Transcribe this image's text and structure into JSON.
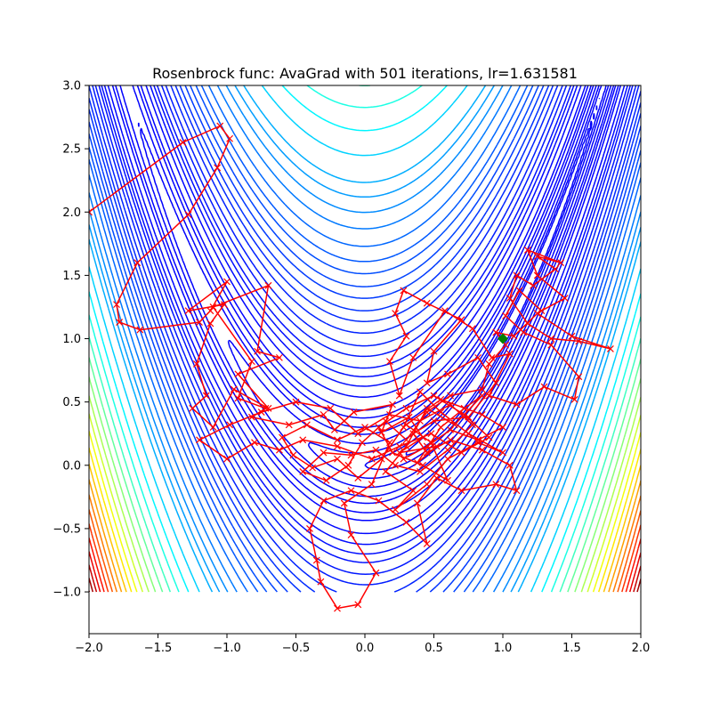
{
  "chart_data": {
    "type": "contour",
    "title": "Rosenbrock func: AvaGrad with 501 iterations, lr=1.631581",
    "xlabel": "",
    "ylabel": "",
    "xlim": [
      -2.0,
      2.0
    ],
    "ylim": [
      -1.33,
      3.0
    ],
    "x_ticks": [
      "−2.0",
      "−1.5",
      "−1.0",
      "−0.5",
      "0.0",
      "0.5",
      "1.0",
      "1.5",
      "2.0"
    ],
    "y_ticks": [
      "−1.0",
      "−0.5",
      "0.0",
      "0.5",
      "1.0",
      "1.5",
      "2.0",
      "2.5",
      "3.0"
    ],
    "x_tick_values": [
      -2.0,
      -1.5,
      -1.0,
      -0.5,
      0.0,
      0.5,
      1.0,
      1.5,
      2.0
    ],
    "y_tick_values": [
      -1.0,
      -0.5,
      0.0,
      0.5,
      1.0,
      1.5,
      2.0,
      2.5,
      3.0
    ],
    "grid": false,
    "contour": {
      "function": "rosenbrock",
      "domain_x": [
        -2.0,
        2.0
      ],
      "domain_y": [
        -1.0,
        3.0
      ],
      "colormap": "jet",
      "levels": [
        0.5,
        1,
        2,
        4,
        7,
        10,
        15,
        20,
        30,
        40,
        50,
        60,
        75,
        90,
        110,
        130,
        150,
        175,
        200,
        230,
        260,
        300,
        350,
        400,
        450,
        500,
        600,
        700,
        800,
        900,
        1000,
        1100,
        1200,
        1300,
        1400,
        1500,
        1600,
        1700,
        1800,
        1900,
        2000,
        2100,
        2200,
        2300,
        2400,
        2500,
        2600,
        2700,
        2800,
        2900,
        3000,
        3100,
        3200,
        3300,
        3400,
        3500
      ],
      "vmax": 2500
    },
    "minimum_marker": {
      "x": 1.0,
      "y": 1.0,
      "color": "#008000"
    },
    "trajectory": {
      "color": "#ff0000",
      "marker": "x",
      "points": [
        [
          -2.0,
          2.0
        ],
        [
          -1.32,
          2.55
        ],
        [
          -1.05,
          2.68
        ],
        [
          -0.98,
          2.58
        ],
        [
          -1.07,
          2.35
        ],
        [
          -1.28,
          1.98
        ],
        [
          -1.65,
          1.6
        ],
        [
          -1.8,
          1.27
        ],
        [
          -1.78,
          1.13
        ],
        [
          -1.63,
          1.07
        ],
        [
          -1.2,
          1.13
        ],
        [
          -1.12,
          1.22
        ],
        [
          -1.0,
          1.45
        ],
        [
          -1.28,
          1.22
        ],
        [
          -1.02,
          1.27
        ],
        [
          -1.12,
          1.12
        ],
        [
          -1.22,
          0.8
        ],
        [
          -1.15,
          0.55
        ],
        [
          -1.25,
          0.45
        ],
        [
          -1.1,
          0.3
        ],
        [
          -0.95,
          0.6
        ],
        [
          -0.7,
          0.45
        ],
        [
          -0.92,
          0.72
        ],
        [
          -0.62,
          0.85
        ],
        [
          -0.78,
          0.9
        ],
        [
          -0.7,
          1.42
        ],
        [
          -1.1,
          1.25
        ],
        [
          -0.82,
          0.82
        ],
        [
          -0.92,
          0.53
        ],
        [
          -0.72,
          0.45
        ],
        [
          -0.82,
          0.38
        ],
        [
          -0.55,
          0.32
        ],
        [
          -0.3,
          0.4
        ],
        [
          -0.22,
          0.28
        ],
        [
          -0.08,
          0.42
        ],
        [
          0.2,
          0.48
        ],
        [
          0.12,
          0.26
        ],
        [
          0.32,
          0.38
        ],
        [
          0.42,
          0.22
        ],
        [
          0.25,
          0.1
        ],
        [
          0.52,
          0.15
        ],
        [
          0.38,
          0.02
        ],
        [
          0.55,
          0.3
        ],
        [
          0.72,
          0.45
        ],
        [
          0.85,
          0.55
        ],
        [
          0.65,
          0.32
        ],
        [
          0.45,
          0.45
        ],
        [
          0.3,
          0.15
        ],
        [
          0.15,
          -0.05
        ],
        [
          0.35,
          -0.2
        ],
        [
          0.22,
          -0.35
        ],
        [
          0.45,
          -0.15
        ],
        [
          0.6,
          0.05
        ],
        [
          0.82,
          0.18
        ],
        [
          1.0,
          0.1
        ],
        [
          0.75,
          0.25
        ],
        [
          0.55,
          0.42
        ],
        [
          0.4,
          0.58
        ],
        [
          0.28,
          0.3
        ],
        [
          0.12,
          0.05
        ],
        [
          -0.05,
          -0.1
        ],
        [
          -0.2,
          0.05
        ],
        [
          -0.38,
          -0.02
        ],
        [
          -0.52,
          0.08
        ],
        [
          -0.6,
          0.22
        ],
        [
          -0.42,
          0.32
        ],
        [
          -0.2,
          0.2
        ],
        [
          0.0,
          0.3
        ],
        [
          0.18,
          0.18
        ],
        [
          0.05,
          -0.15
        ],
        [
          -0.15,
          -0.3
        ],
        [
          -0.1,
          -0.55
        ],
        [
          0.08,
          -0.85
        ],
        [
          -0.05,
          -1.1
        ],
        [
          -0.2,
          -1.13
        ],
        [
          -0.32,
          -0.92
        ],
        [
          -0.35,
          -0.75
        ],
        [
          -0.4,
          -0.5
        ],
        [
          -0.3,
          -0.28
        ],
        [
          -0.1,
          -0.2
        ],
        [
          0.1,
          -0.28
        ],
        [
          0.3,
          -0.45
        ],
        [
          0.45,
          -0.62
        ],
        [
          0.38,
          -0.3
        ],
        [
          0.52,
          -0.1
        ],
        [
          0.7,
          -0.2
        ],
        [
          0.95,
          -0.15
        ],
        [
          1.1,
          -0.2
        ],
        [
          1.05,
          0.0
        ],
        [
          0.85,
          0.12
        ],
        [
          0.62,
          0.2
        ],
        [
          0.45,
          0.1
        ],
        [
          0.35,
          0.25
        ],
        [
          0.5,
          0.35
        ],
        [
          0.75,
          0.38
        ],
        [
          0.95,
          0.65
        ],
        [
          0.82,
          0.85
        ],
        [
          0.6,
          0.72
        ],
        [
          0.45,
          0.65
        ],
        [
          0.5,
          0.9
        ],
        [
          0.7,
          1.15
        ],
        [
          0.45,
          1.28
        ],
        [
          0.28,
          1.38
        ],
        [
          0.22,
          1.2
        ],
        [
          0.3,
          1.02
        ],
        [
          0.18,
          0.82
        ],
        [
          0.25,
          0.55
        ],
        [
          0.35,
          0.85
        ],
        [
          0.58,
          1.22
        ],
        [
          0.78,
          1.08
        ],
        [
          0.92,
          0.85
        ],
        [
          1.05,
          0.88
        ],
        [
          0.9,
          0.55
        ],
        [
          1.1,
          0.48
        ],
        [
          1.3,
          0.62
        ],
        [
          1.52,
          0.52
        ],
        [
          1.55,
          0.7
        ],
        [
          1.35,
          0.95
        ],
        [
          1.15,
          1.05
        ],
        [
          1.02,
          1.18
        ],
        [
          1.12,
          1.38
        ],
        [
          1.28,
          1.22
        ],
        [
          1.45,
          1.32
        ],
        [
          1.25,
          1.5
        ],
        [
          1.18,
          1.7
        ],
        [
          1.42,
          1.6
        ],
        [
          1.25,
          1.65
        ],
        [
          1.38,
          1.55
        ],
        [
          1.22,
          1.42
        ],
        [
          1.1,
          1.5
        ],
        [
          1.05,
          1.32
        ],
        [
          1.18,
          1.12
        ],
        [
          1.35,
          1.0
        ],
        [
          1.55,
          0.98
        ],
        [
          1.78,
          0.92
        ],
        [
          1.5,
          1.02
        ],
        [
          1.25,
          1.2
        ],
        [
          1.08,
          1.02
        ],
        [
          0.95,
          1.05
        ],
        [
          1.02,
          0.95
        ],
        [
          0.9,
          0.8
        ],
        [
          0.85,
          0.6
        ],
        [
          0.62,
          0.55
        ],
        [
          0.45,
          0.42
        ],
        [
          0.3,
          0.2
        ],
        [
          0.15,
          0.35
        ],
        [
          -0.02,
          0.18
        ],
        [
          -0.12,
          0.0
        ],
        [
          -0.28,
          -0.12
        ],
        [
          -0.45,
          -0.05
        ],
        [
          -0.3,
          0.1
        ],
        [
          -0.1,
          0.08
        ],
        [
          0.08,
          0.12
        ],
        [
          0.22,
          0.0
        ],
        [
          0.4,
          -0.05
        ],
        [
          0.6,
          0.12
        ],
        [
          0.78,
          0.32
        ],
        [
          0.62,
          0.48
        ],
        [
          0.4,
          0.35
        ],
        [
          0.18,
          0.4
        ],
        [
          -0.05,
          0.25
        ],
        [
          -0.25,
          0.45
        ],
        [
          -0.5,
          0.5
        ],
        [
          -0.75,
          0.42
        ],
        [
          -0.98,
          0.32
        ],
        [
          -1.2,
          0.2
        ],
        [
          -1.0,
          0.05
        ],
        [
          -0.8,
          0.18
        ],
        [
          -0.62,
          0.12
        ],
        [
          -0.45,
          0.2
        ],
        [
          -0.2,
          0.15
        ],
        [
          0.05,
          0.05
        ],
        [
          0.25,
          0.15
        ],
        [
          0.48,
          0.25
        ],
        [
          0.7,
          0.1
        ],
        [
          0.9,
          0.22
        ],
        [
          0.72,
          0.4
        ],
        [
          0.5,
          0.55
        ],
        [
          0.3,
          0.45
        ],
        [
          0.1,
          0.3
        ],
        [
          0.2,
          0.1
        ],
        [
          0.42,
          0.0
        ],
        [
          0.6,
          -0.12
        ],
        [
          0.48,
          0.18
        ],
        [
          0.3,
          0.32
        ],
        [
          0.55,
          0.52
        ],
        [
          0.85,
          0.4
        ],
        [
          1.0,
          0.3
        ],
        [
          0.82,
          0.2
        ],
        [
          0.62,
          0.28
        ],
        [
          0.45,
          0.15
        ],
        [
          0.28,
          0.05
        ]
      ]
    }
  }
}
